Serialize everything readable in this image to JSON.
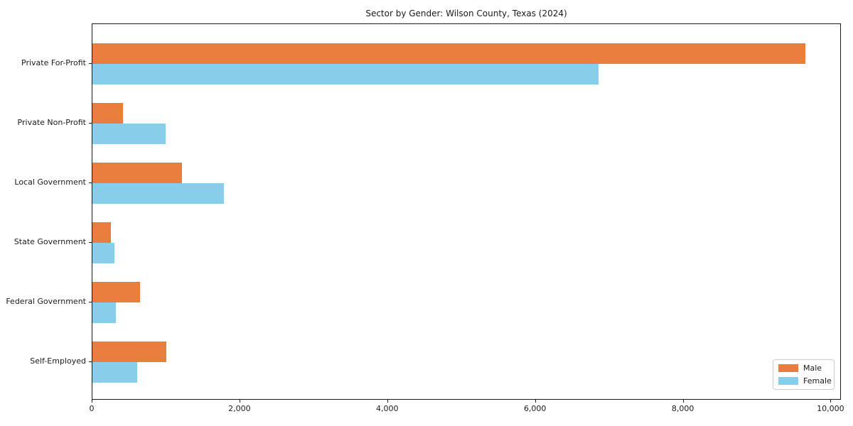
{
  "chart_data": {
    "type": "bar",
    "orientation": "horizontal",
    "title": "Sector by Gender: Wilson County, Texas (2024)",
    "categories": [
      "Private For-Profit",
      "Private Non-Profit",
      "Local Government",
      "State Government",
      "Federal Government",
      "Self-Employed"
    ],
    "series": [
      {
        "name": "Male",
        "color": "#e87d3e",
        "values": [
          9650,
          410,
          1210,
          245,
          640,
          1000
        ]
      },
      {
        "name": "Female",
        "color": "#87ceeb",
        "values": [
          6850,
          990,
          1775,
          300,
          320,
          610
        ]
      }
    ],
    "xlim": [
      0,
      10140
    ],
    "x_ticks": [
      0,
      2000,
      4000,
      6000,
      8000,
      10000
    ],
    "x_tick_labels": [
      "0",
      "2,000",
      "4,000",
      "6,000",
      "8,000",
      "10,000"
    ],
    "grid": false,
    "legend": {
      "position": "lower right"
    }
  }
}
